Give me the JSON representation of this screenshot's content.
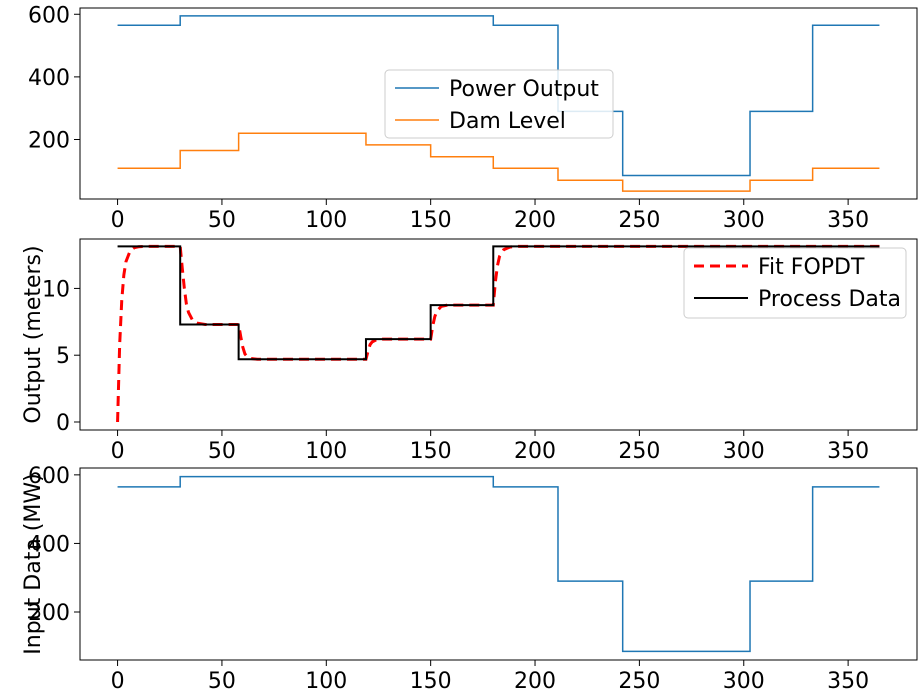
{
  "chart_data": [
    {
      "type": "line",
      "title": "",
      "xlabel": "",
      "ylabel": "",
      "xlim": [
        -18,
        383
      ],
      "ylim": [
        10,
        620
      ],
      "xticks": [
        0,
        50,
        100,
        150,
        200,
        250,
        300,
        350
      ],
      "yticks": [
        200,
        400,
        600
      ],
      "legend": {
        "placement": "center",
        "entries": [
          "Power Output",
          "Dam Level"
        ]
      },
      "series": [
        {
          "name": "Power Output",
          "color": "#1f77b4",
          "dash": "",
          "width": 1.5,
          "step": true,
          "x": [
            0,
            30,
            30,
            180,
            180,
            211,
            211,
            242,
            242,
            303,
            303,
            333,
            333,
            365
          ],
          "y": [
            565,
            565,
            595,
            595,
            565,
            565,
            290,
            290,
            85,
            85,
            290,
            290,
            565,
            565
          ]
        },
        {
          "name": "Dam Level",
          "color": "#ff7f0e",
          "dash": "",
          "width": 1.5,
          "step": true,
          "x": [
            0,
            30,
            30,
            58,
            58,
            119,
            119,
            150,
            150,
            180,
            180,
            211,
            211,
            242,
            242,
            303,
            303,
            333,
            333,
            365
          ],
          "y": [
            108,
            108,
            165,
            165,
            220,
            220,
            183,
            183,
            145,
            145,
            108,
            108,
            70,
            70,
            35,
            35,
            70,
            70,
            108,
            108
          ]
        }
      ]
    },
    {
      "type": "line",
      "title": "",
      "xlabel": "",
      "ylabel": "Output (meters)",
      "xlim": [
        -18,
        383
      ],
      "ylim": [
        -0.6,
        13.7
      ],
      "xticks": [
        0,
        50,
        100,
        150,
        200,
        250,
        300,
        350
      ],
      "yticks": [
        0,
        5,
        10
      ],
      "legend": {
        "placement": "upper right",
        "entries": [
          "Fit FOPDT",
          "Process Data"
        ]
      },
      "series": [
        {
          "name": "Fit FOPDT",
          "color": "#ff0000",
          "dash": "10,6",
          "width": 3,
          "step": false,
          "x": [
            0,
            1,
            2,
            3,
            4,
            6,
            8,
            10,
            14,
            30,
            31,
            32,
            33,
            34,
            36,
            38,
            42,
            58,
            59,
            60,
            61,
            62,
            64,
            67,
            119,
            120,
            121,
            122,
            124,
            127,
            150,
            151,
            152,
            153,
            155,
            158,
            180,
            181,
            182,
            183,
            185,
            188,
            192,
            365
          ],
          "y": [
            0,
            5.8,
            9.1,
            11.0,
            12.0,
            12.8,
            13.05,
            13.12,
            13.15,
            13.15,
            11.5,
            10.0,
            8.8,
            8.2,
            7.6,
            7.4,
            7.3,
            7.3,
            6.4,
            5.6,
            5.1,
            4.9,
            4.75,
            4.7,
            4.7,
            5.3,
            5.8,
            6.0,
            6.15,
            6.2,
            6.2,
            7.2,
            7.9,
            8.3,
            8.65,
            8.75,
            8.75,
            10.5,
            11.7,
            12.4,
            12.9,
            13.1,
            13.15,
            13.15
          ]
        },
        {
          "name": "Process Data",
          "color": "#000000",
          "dash": "",
          "width": 2,
          "step": true,
          "x": [
            0,
            30,
            30,
            58,
            58,
            119,
            119,
            150,
            150,
            180,
            180,
            365
          ],
          "y": [
            13.15,
            13.15,
            7.3,
            7.3,
            4.7,
            4.7,
            6.2,
            6.2,
            8.75,
            8.75,
            13.15,
            13.15
          ]
        }
      ]
    },
    {
      "type": "line",
      "title": "",
      "xlabel": "",
      "ylabel": "Input Data (MW)",
      "xlim": [
        -18,
        383
      ],
      "ylim": [
        60,
        620
      ],
      "xticks": [
        0,
        50,
        100,
        150,
        200,
        250,
        300,
        350
      ],
      "yticks": [
        200,
        400,
        600
      ],
      "legend": null,
      "series": [
        {
          "name": "",
          "color": "#1f77b4",
          "dash": "",
          "width": 1.5,
          "step": true,
          "x": [
            0,
            30,
            30,
            180,
            180,
            211,
            211,
            242,
            242,
            303,
            303,
            333,
            333,
            365
          ],
          "y": [
            565,
            565,
            595,
            595,
            565,
            565,
            290,
            290,
            85,
            85,
            290,
            290,
            565,
            565
          ]
        }
      ]
    }
  ]
}
